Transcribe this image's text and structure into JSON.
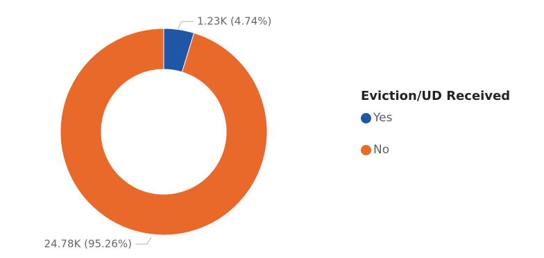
{
  "chart_data": {
    "type": "pie",
    "variant": "donut",
    "legend": {
      "title": "Eviction/UD Received",
      "placement": "right"
    },
    "slices": [
      {
        "name": "Yes",
        "value": 1230,
        "percent": 4.74,
        "label": "1.23K (4.74%)",
        "color": "#1F56A8"
      },
      {
        "name": "No",
        "value": 24780,
        "percent": 95.26,
        "label": "24.78K (95.26%)",
        "color": "#E8692A"
      }
    ]
  }
}
